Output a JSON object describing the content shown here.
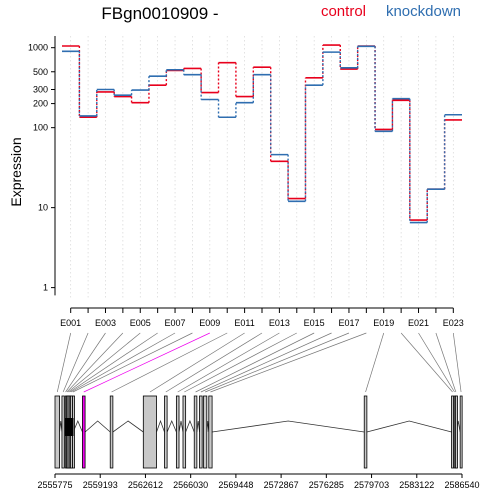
{
  "chart_data": {
    "type": "line",
    "title": "FBgn0010909 -",
    "xlabel": "",
    "ylabel": "Expression",
    "y_scale": "log",
    "ylim": [
      0.7,
      1400
    ],
    "y_ticks": [
      1,
      10,
      100,
      200,
      300,
      500,
      1000
    ],
    "grid": "vertical dotted",
    "legend_position": "top-right",
    "colors": {
      "control": "#e8001c",
      "knockdown": "#2f6eb0"
    },
    "categories": [
      "E001",
      "E002",
      "E003",
      "E004",
      "E005",
      "E006",
      "E007",
      "E008",
      "E009",
      "E010",
      "E011",
      "E012",
      "E013",
      "E014",
      "E015",
      "E016",
      "E017",
      "E018",
      "E019",
      "E020",
      "E021",
      "E022",
      "E023"
    ],
    "x_tick_labels": [
      "E001",
      "E003",
      "E005",
      "E007",
      "E009",
      "E011",
      "E013",
      "E015",
      "E017",
      "E019",
      "E021",
      "E023"
    ],
    "series": [
      {
        "name": "control",
        "values": [
          1050,
          135,
          280,
          245,
          205,
          340,
          520,
          550,
          275,
          650,
          245,
          570,
          38,
          13,
          420,
          1080,
          540,
          1050,
          95,
          220,
          7,
          17,
          125
        ]
      },
      {
        "name": "knockdown",
        "values": [
          900,
          140,
          300,
          255,
          295,
          440,
          530,
          460,
          225,
          135,
          205,
          460,
          46,
          12,
          340,
          880,
          560,
          1040,
          90,
          230,
          6.5,
          17,
          145
        ]
      }
    ],
    "gene_model": {
      "coordinates": [
        "2555775",
        "2559193",
        "2562612",
        "2566030",
        "2569448",
        "2572867",
        "2576285",
        "2579703",
        "2583122",
        "2586540"
      ],
      "range": [
        2555775,
        2586540
      ],
      "highlight_exon": "E009",
      "highlight_color": "#ee00ee"
    }
  }
}
